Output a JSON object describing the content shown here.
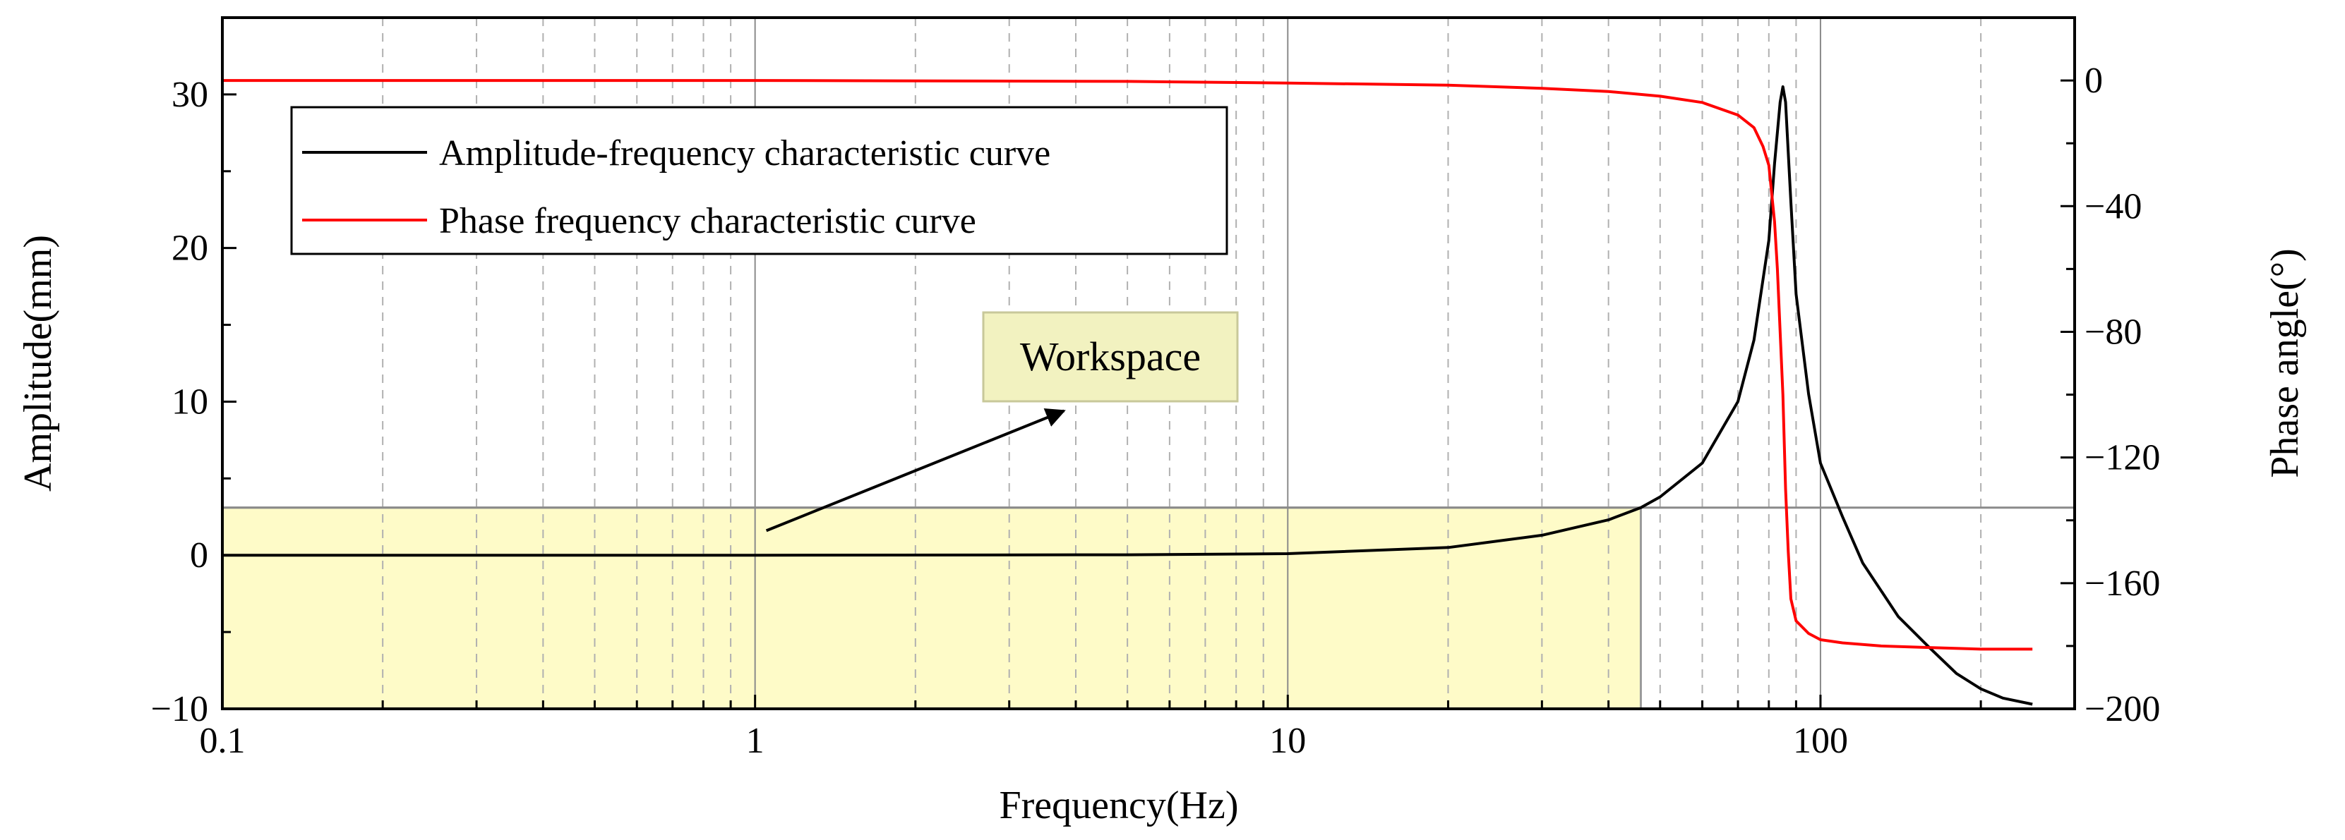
{
  "chart_data": {
    "type": "line",
    "xlabel": "Frequency(Hz)",
    "ylabel": "Amplitude(mm)",
    "y2label": "Phase angle(°)",
    "x_scale": "log",
    "xlim": [
      0.1,
      300
    ],
    "ylim": [
      -10,
      35
    ],
    "y2lim": [
      -200,
      20
    ],
    "x_ticks": [
      0.1,
      1,
      10,
      100
    ],
    "x_tick_labels": [
      "0.1",
      "1",
      "10",
      "100"
    ],
    "y_ticks": [
      -10,
      0,
      10,
      20,
      30
    ],
    "y_tick_labels": [
      "−10",
      "0",
      "10",
      "20",
      "30"
    ],
    "y2_ticks": [
      -200,
      -160,
      -120,
      -80,
      -40,
      0
    ],
    "y2_tick_labels": [
      "−200",
      "−160",
      "−120",
      "−80",
      "−40",
      "0"
    ],
    "grid": "major solid, minor dashed (vertical)",
    "legend_position": "top-left",
    "series": [
      {
        "name": "Amplitude-frequency characteristic curve",
        "axis": "left",
        "color": "#000000",
        "x": [
          0.1,
          1,
          5,
          10,
          20,
          30,
          40,
          46,
          50,
          60,
          70,
          75,
          80,
          82,
          84,
          85,
          86,
          88,
          90,
          95,
          100,
          110,
          120,
          140,
          160,
          180,
          200,
          220,
          250
        ],
        "y": [
          0,
          0,
          0.03,
          0.1,
          0.5,
          1.3,
          2.3,
          3.1,
          3.8,
          6.0,
          10.0,
          14.0,
          20.5,
          25.5,
          29.5,
          30.5,
          29.5,
          23.0,
          17.0,
          10.5,
          6.0,
          2.5,
          -0.5,
          -4.0,
          -6.0,
          -7.7,
          -8.7,
          -9.3,
          -9.7
        ]
      },
      {
        "name": "Phase frequency characteristic curve",
        "axis": "right",
        "color": "#ff0000",
        "x": [
          0.1,
          1,
          5,
          10,
          20,
          30,
          40,
          50,
          60,
          70,
          75,
          78,
          80,
          82,
          83,
          84,
          85,
          86,
          87,
          88,
          90,
          95,
          100,
          110,
          130,
          160,
          200,
          250
        ],
        "y": [
          0,
          0,
          -0.3,
          -0.8,
          -1.5,
          -2.5,
          -3.5,
          -5,
          -7,
          -11,
          -15,
          -21,
          -27,
          -45,
          -60,
          -80,
          -100,
          -130,
          -150,
          -165,
          -172,
          -176,
          -178,
          -179,
          -180,
          -180.5,
          -181,
          -181
        ]
      }
    ],
    "annotations": [
      {
        "text": "Workspace",
        "highlight_x": [
          0.1,
          46
        ],
        "highlight_y": [
          -10,
          3.1
        ],
        "threshold_y": 3.1,
        "arrow_from": [
          1.05,
          1.6
        ],
        "arrow_to": [
          3.8,
          9.4
        ]
      }
    ],
    "colors": {
      "highlight_fill": "#fefbc8",
      "annotation_box": "#f2f2c0",
      "grid": "#b0b0b0"
    }
  }
}
